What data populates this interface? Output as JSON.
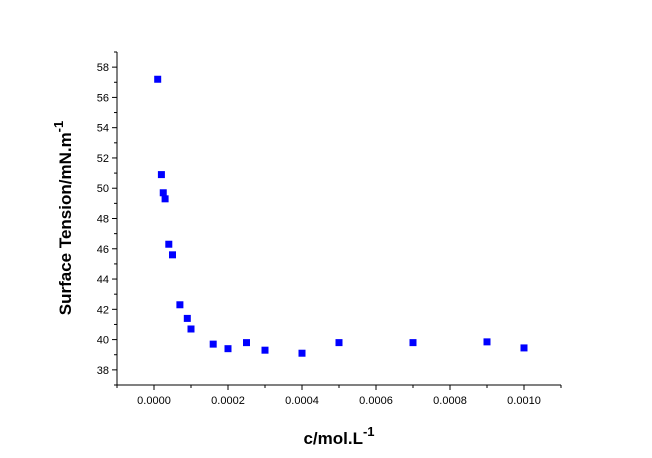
{
  "chart_data": {
    "type": "scatter",
    "xlabel": "c/mol.L",
    "xlabel_superscript": "-1",
    "ylabel": "Surface Tension/mN.m",
    "ylabel_superscript": "-1",
    "xlim": [
      -0.0001,
      0.0011
    ],
    "ylim": [
      37,
      59
    ],
    "x_ticks": [
      0.0,
      0.0002,
      0.0004,
      0.0006,
      0.0008,
      0.001
    ],
    "x_tick_labels": [
      "0.0000",
      "0.0002",
      "0.0004",
      "0.0006",
      "0.0008",
      "0.0010"
    ],
    "y_ticks": [
      38,
      40,
      42,
      44,
      46,
      48,
      50,
      52,
      54,
      56,
      58
    ],
    "y_tick_labels": [
      "38",
      "40",
      "42",
      "44",
      "46",
      "48",
      "50",
      "52",
      "54",
      "56",
      "58"
    ],
    "grid": false,
    "marker": "square",
    "marker_color": "#0000ff",
    "points": [
      {
        "x": 1e-05,
        "y": 57.2
      },
      {
        "x": 2e-05,
        "y": 50.9
      },
      {
        "x": 2.5e-05,
        "y": 49.7
      },
      {
        "x": 3e-05,
        "y": 49.3
      },
      {
        "x": 4e-05,
        "y": 46.3
      },
      {
        "x": 5e-05,
        "y": 45.6
      },
      {
        "x": 7e-05,
        "y": 42.3
      },
      {
        "x": 9e-05,
        "y": 41.4
      },
      {
        "x": 0.0001,
        "y": 40.7
      },
      {
        "x": 0.00016,
        "y": 39.7
      },
      {
        "x": 0.0002,
        "y": 39.4
      },
      {
        "x": 0.00025,
        "y": 39.8
      },
      {
        "x": 0.0003,
        "y": 39.3
      },
      {
        "x": 0.0004,
        "y": 39.1
      },
      {
        "x": 0.0005,
        "y": 39.8
      },
      {
        "x": 0.0007,
        "y": 39.8
      },
      {
        "x": 0.0009,
        "y": 39.85
      },
      {
        "x": 0.001,
        "y": 39.45
      }
    ]
  }
}
